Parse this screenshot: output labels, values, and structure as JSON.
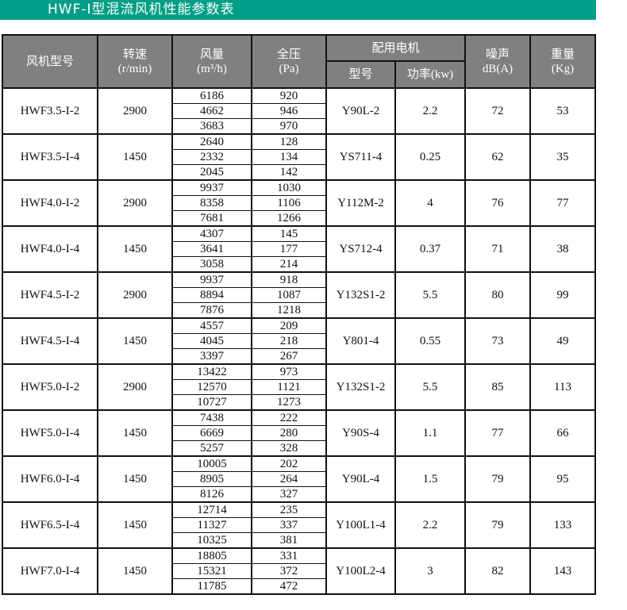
{
  "title": "HWF-I型混流风机性能参数表",
  "colors": {
    "title_bar": "#009e86",
    "header_bg": "#808080"
  },
  "header": {
    "model": "风机型号",
    "speed": "转速",
    "speed_unit": "(r/min)",
    "flow": "风量",
    "flow_unit": "(m³/h)",
    "pressure": "全压",
    "pressure_unit": "(Pa)",
    "motor": "配用电机",
    "motor_model": "型号",
    "motor_power": "功率(kw)",
    "noise": "噪声",
    "noise_unit": "dB(A)",
    "weight": "重量",
    "weight_unit": "(Kg)"
  },
  "rows": [
    {
      "model": "HWF3.5-I-2",
      "speed": "2900",
      "flow": [
        "6186",
        "4662",
        "3683"
      ],
      "pressure": [
        "920",
        "946",
        "970"
      ],
      "motor": "Y90L-2",
      "power": "2.2",
      "noise": "72",
      "weight": "53"
    },
    {
      "model": "HWF3.5-I-4",
      "speed": "1450",
      "flow": [
        "2640",
        "2332",
        "2045"
      ],
      "pressure": [
        "128",
        "134",
        "142"
      ],
      "motor": "YS711-4",
      "power": "0.25",
      "noise": "62",
      "weight": "35"
    },
    {
      "model": "HWF4.0-I-2",
      "speed": "2900",
      "flow": [
        "9937",
        "8358",
        "7681"
      ],
      "pressure": [
        "1030",
        "1106",
        "1266"
      ],
      "motor": "Y112M-2",
      "power": "4",
      "noise": "76",
      "weight": "77"
    },
    {
      "model": "HWF4.0-I-4",
      "speed": "1450",
      "flow": [
        "4307",
        "3641",
        "3058"
      ],
      "pressure": [
        "145",
        "177",
        "214"
      ],
      "motor": "YS712-4",
      "power": "0.37",
      "noise": "71",
      "weight": "38"
    },
    {
      "model": "HWF4.5-I-2",
      "speed": "2900",
      "flow": [
        "9937",
        "8894",
        "7876"
      ],
      "pressure": [
        "918",
        "1087",
        "1218"
      ],
      "motor": "Y132S1-2",
      "power": "5.5",
      "noise": "80",
      "weight": "99"
    },
    {
      "model": "HWF4.5-I-4",
      "speed": "1450",
      "flow": [
        "4557",
        "4045",
        "3397"
      ],
      "pressure": [
        "209",
        "218",
        "267"
      ],
      "motor": "Y801-4",
      "power": "0.55",
      "noise": "73",
      "weight": "49"
    },
    {
      "model": "HWF5.0-I-2",
      "speed": "2900",
      "flow": [
        "13422",
        "12570",
        "10727"
      ],
      "pressure": [
        "973",
        "1121",
        "1273"
      ],
      "motor": "Y132S1-2",
      "power": "5.5",
      "noise": "85",
      "weight": "113"
    },
    {
      "model": "HWF5.0-I-4",
      "speed": "1450",
      "flow": [
        "7438",
        "6669",
        "5257"
      ],
      "pressure": [
        "222",
        "280",
        "328"
      ],
      "motor": "Y90S-4",
      "power": "1.1",
      "noise": "77",
      "weight": "66"
    },
    {
      "model": "HWF6.0-I-4",
      "speed": "1450",
      "flow": [
        "10005",
        "8905",
        "8126"
      ],
      "pressure": [
        "202",
        "264",
        "327"
      ],
      "motor": "Y90L-4",
      "power": "1.5",
      "noise": "79",
      "weight": "95"
    },
    {
      "model": "HWF6.5-I-4",
      "speed": "1450",
      "flow": [
        "12714",
        "11327",
        "10325"
      ],
      "pressure": [
        "235",
        "337",
        "381"
      ],
      "motor": "Y100L1-4",
      "power": "2.2",
      "noise": "79",
      "weight": "133"
    },
    {
      "model": "HWF7.0-I-4",
      "speed": "1450",
      "flow": [
        "18805",
        "15321",
        "11785"
      ],
      "pressure": [
        "331",
        "372",
        "472"
      ],
      "motor": "Y100L2-4",
      "power": "3",
      "noise": "82",
      "weight": "143"
    }
  ]
}
